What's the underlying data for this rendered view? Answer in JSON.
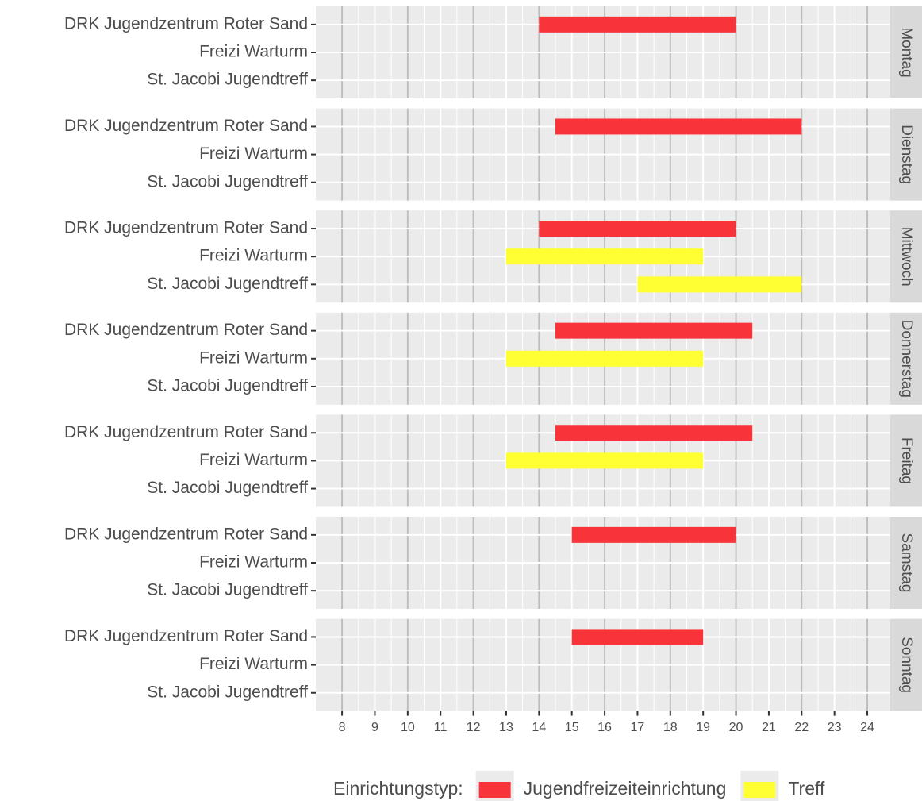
{
  "chart_data": {
    "type": "gantt",
    "facets": [
      "Montag",
      "Dienstag",
      "Mittwoch",
      "Donnerstag",
      "Freitag",
      "Samstag",
      "Sonntag"
    ],
    "categories": [
      "DRK Jugendzentrum Roter Sand",
      "Freizi Warturm",
      "St. Jacobi Jugendtreff"
    ],
    "xlim": [
      7.2,
      24.7
    ],
    "xticks": [
      8,
      9,
      10,
      11,
      12,
      13,
      14,
      15,
      16,
      17,
      18,
      19,
      20,
      21,
      22,
      23,
      24
    ],
    "vlines": [
      8,
      10,
      12,
      14,
      16,
      18,
      20,
      22,
      24
    ],
    "legend_title": "Einrichtungstyp:",
    "legend_position": "bottom",
    "series": [
      {
        "name": "Jugendfreizeiteinrichtung",
        "color": "#f8343a",
        "points": [
          {
            "facet": "Montag",
            "category": "DRK Jugendzentrum Roter Sand",
            "start": 14,
            "end": 20
          },
          {
            "facet": "Dienstag",
            "category": "DRK Jugendzentrum Roter Sand",
            "start": 14.5,
            "end": 22
          },
          {
            "facet": "Mittwoch",
            "category": "DRK Jugendzentrum Roter Sand",
            "start": 14,
            "end": 20
          },
          {
            "facet": "Donnerstag",
            "category": "DRK Jugendzentrum Roter Sand",
            "start": 14.5,
            "end": 20.5
          },
          {
            "facet": "Freitag",
            "category": "DRK Jugendzentrum Roter Sand",
            "start": 14.5,
            "end": 20.5
          },
          {
            "facet": "Samstag",
            "category": "DRK Jugendzentrum Roter Sand",
            "start": 15,
            "end": 20
          },
          {
            "facet": "Sonntag",
            "category": "DRK Jugendzentrum Roter Sand",
            "start": 15,
            "end": 19
          }
        ]
      },
      {
        "name": "Treff",
        "color": "#ffff33",
        "points": [
          {
            "facet": "Mittwoch",
            "category": "Freizi Warturm",
            "start": 13,
            "end": 19
          },
          {
            "facet": "Mittwoch",
            "category": "St. Jacobi Jugendtreff",
            "start": 17,
            "end": 22
          },
          {
            "facet": "Donnerstag",
            "category": "Freizi Warturm",
            "start": 13,
            "end": 19
          },
          {
            "facet": "Freitag",
            "category": "Freizi Warturm",
            "start": 13,
            "end": 19
          }
        ]
      }
    ]
  }
}
